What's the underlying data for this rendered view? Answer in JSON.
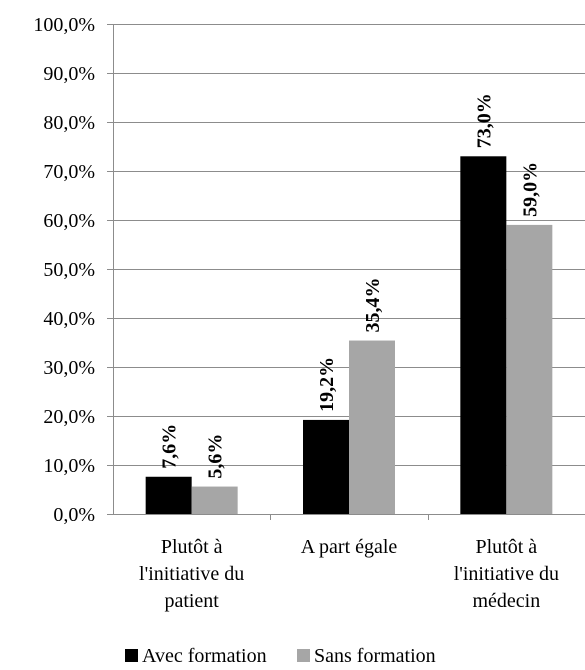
{
  "chart_data": {
    "type": "bar",
    "categories": [
      [
        "Plutôt à",
        "l'initiative du",
        "patient"
      ],
      [
        "A part égale"
      ],
      [
        "Plutôt à",
        "l'initiative du",
        "médecin"
      ]
    ],
    "series": [
      {
        "name": "Avec formation",
        "values": [
          7.6,
          19.2,
          73.0
        ],
        "labels": [
          "7,6%",
          "19,2%",
          "73,0%"
        ],
        "color": "#000000"
      },
      {
        "name": "Sans formation",
        "values": [
          5.6,
          35.4,
          59.0
        ],
        "labels": [
          "5,6%",
          "35,4%",
          "59,0%"
        ],
        "color": "#a6a6a6"
      }
    ],
    "yticks": [
      "0,0%",
      "10,0%",
      "20,0%",
      "30,0%",
      "40,0%",
      "50,0%",
      "60,0%",
      "70,0%",
      "80,0%",
      "90,0%",
      "100,0%"
    ],
    "ylim": [
      0,
      100
    ],
    "grid": true,
    "gridColor": "#8c8c8c",
    "legend_position": "bottom"
  }
}
